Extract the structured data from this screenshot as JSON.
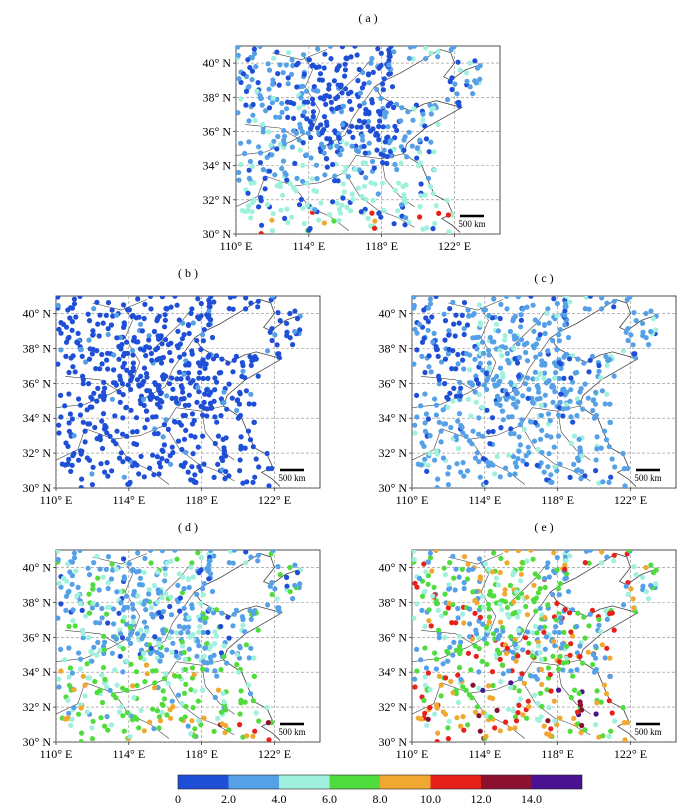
{
  "figure": {
    "panels": [
      {
        "id": "a",
        "label": "( a )"
      },
      {
        "id": "b",
        "label": "( b )"
      },
      {
        "id": "c",
        "label": "( c )"
      },
      {
        "id": "d",
        "label": "( d )"
      },
      {
        "id": "e",
        "label": "( e )"
      }
    ],
    "lat_tick_labels": [
      "30° N",
      "32° N",
      "34° N",
      "36° N",
      "38° N",
      "40° N"
    ],
    "lon_tick_labels": [
      "110° E",
      "114° E",
      "118° E",
      "122° E"
    ],
    "scale_bar_label": "500 km",
    "colorbar": {
      "tick_labels": [
        "0",
        "2.0",
        "4.0",
        "6.0",
        "8.0",
        "10.0",
        "12.0",
        "14.0"
      ],
      "colors": [
        "#1f4fd6",
        "#55a0e6",
        "#9ff0dc",
        "#4fdc3c",
        "#f0a830",
        "#e8201a",
        "#8c1030",
        "#4a1290"
      ]
    }
  },
  "chart_data": {
    "type": "scatter",
    "xlim": [
      110,
      124.5
    ],
    "ylim": [
      30,
      41
    ],
    "x_ticks": [
      110,
      114,
      118,
      122
    ],
    "y_ticks": [
      30,
      32,
      34,
      36,
      38,
      40
    ],
    "grid": true,
    "color_bins": [
      0,
      2,
      4,
      6,
      8,
      10,
      12,
      14,
      16
    ]
  }
}
